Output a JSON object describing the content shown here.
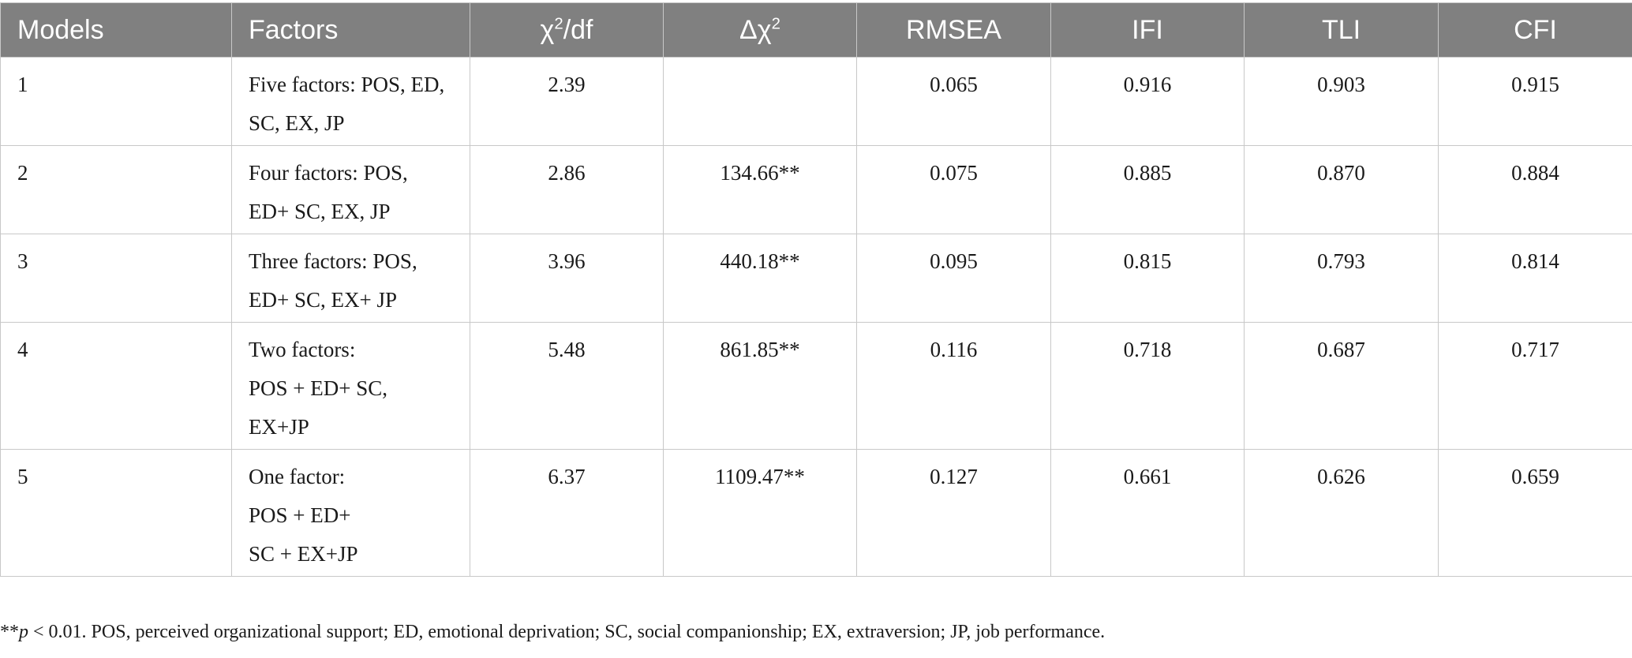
{
  "table": {
    "header": {
      "models": "Models",
      "factors": "Factors",
      "chi_df_base": "χ",
      "chi_df_sup": "2",
      "chi_df_rest": "/df",
      "delta_base": "Δχ",
      "delta_sup": "2",
      "rmsea": "RMSEA",
      "ifi": "IFI",
      "tli": "TLI",
      "cfi": "CFI"
    },
    "rows": [
      {
        "model": "1",
        "factors": [
          "Five factors: POS, ED,",
          "SC, EX, JP"
        ],
        "chi_df": "2.39",
        "delta_chi": "",
        "rmsea": "0.065",
        "ifi": "0.916",
        "tli": "0.903",
        "cfi": "0.915"
      },
      {
        "model": "2",
        "factors": [
          "Four factors: POS,",
          "ED+ SC, EX, JP"
        ],
        "chi_df": "2.86",
        "delta_chi": "134.66**",
        "rmsea": "0.075",
        "ifi": "0.885",
        "tli": "0.870",
        "cfi": "0.884"
      },
      {
        "model": "3",
        "factors": [
          "Three factors: POS,",
          "ED+ SC, EX+ JP"
        ],
        "chi_df": "3.96",
        "delta_chi": "440.18**",
        "rmsea": "0.095",
        "ifi": "0.815",
        "tli": "0.793",
        "cfi": "0.814"
      },
      {
        "model": "4",
        "factors": [
          "Two factors:",
          "POS + ED+ SC,",
          "EX+JP"
        ],
        "chi_df": "5.48",
        "delta_chi": "861.85**",
        "rmsea": "0.116",
        "ifi": "0.718",
        "tli": "0.687",
        "cfi": "0.717"
      },
      {
        "model": "5",
        "factors": [
          "One factor:",
          "POS + ED+",
          "SC + EX+JP"
        ],
        "chi_df": "6.37",
        "delta_chi": "1109.47**",
        "rmsea": "0.127",
        "ifi": "0.661",
        "tli": "0.626",
        "cfi": "0.659"
      }
    ]
  },
  "note": {
    "stars": "**",
    "p": "p",
    "text": " < 0.01. POS, perceived organizational support; ED, emotional deprivation; SC, social companionship; EX, extraversion; JP, job performance."
  }
}
